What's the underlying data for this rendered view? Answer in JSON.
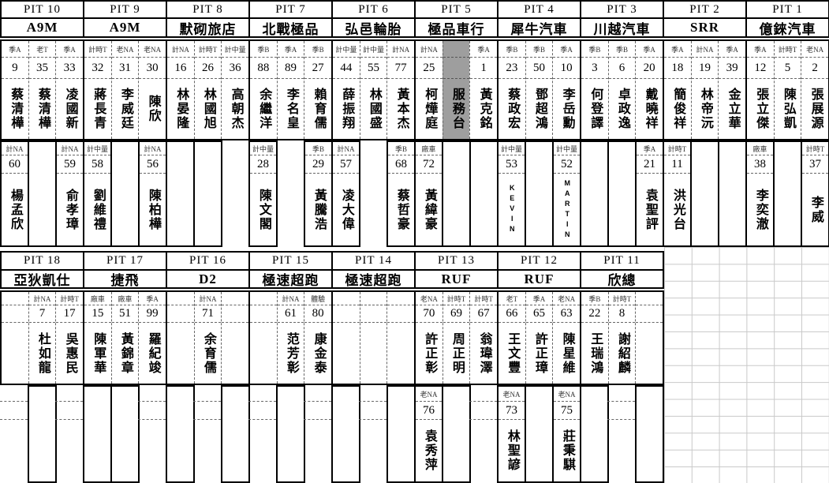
{
  "colors": {
    "service_bg": "#9e9e9e",
    "grid_line": "#c9c9c9",
    "border": "#000000"
  },
  "blocks": [
    {
      "pits": [
        {
          "name": "PIT 10",
          "team": "A9M",
          "cols": [
            {
              "cls": "季A",
              "num": "9",
              "driver": "蔡清樺"
            },
            {
              "cls": "老T",
              "num": "35",
              "driver": "蔡清樺"
            },
            {
              "cls": "季A",
              "num": "33",
              "driver": "凌國新"
            }
          ],
          "bottom": [
            {
              "state": "filled",
              "cls": "計NA",
              "num": "60",
              "driver": "楊孟欣"
            },
            {
              "state": "box"
            },
            {
              "state": "filled",
              "cls": "計NA",
              "num": "59",
              "driver": "俞孝璋"
            }
          ]
        },
        {
          "name": "PIT 9",
          "team": "A9M",
          "cols": [
            {
              "cls": "計時T",
              "num": "32",
              "driver": "蔣長青"
            },
            {
              "cls": "老NA",
              "num": "31",
              "driver": "李威廷"
            },
            {
              "cls": "老NA",
              "num": "30",
              "driver": "陳欣"
            }
          ],
          "bottom": [
            {
              "state": "filled",
              "cls": "計中量",
              "num": "58",
              "driver": "劉維禮"
            },
            {
              "state": "box"
            },
            {
              "state": "filled",
              "cls": "計NA",
              "num": "56",
              "driver": "陳柏樺"
            }
          ]
        },
        {
          "name": "PIT 8",
          "team": "默砌旅店",
          "cols": [
            {
              "cls": "計NA",
              "num": "16",
              "driver": "林晏隆"
            },
            {
              "cls": "計時T",
              "num": "26",
              "driver": "林國旭"
            },
            {
              "cls": "計中量",
              "num": "36",
              "driver": "高朝杰"
            }
          ],
          "bottom": [
            {
              "state": "box"
            },
            {
              "state": "box"
            },
            {
              "state": "none"
            }
          ]
        },
        {
          "name": "PIT 7",
          "team": "北戰極品",
          "cols": [
            {
              "cls": "季B",
              "num": "88",
              "driver": "余繼洋"
            },
            {
              "cls": "季A",
              "num": "89",
              "driver": "李名皇"
            },
            {
              "cls": "季B",
              "num": "27",
              "driver": "賴育儒"
            }
          ],
          "bottom": [
            {
              "state": "filled",
              "cls": "計中量",
              "num": "28",
              "driver": "陳文閣"
            },
            {
              "state": "none"
            },
            {
              "state": "filled",
              "cls": "季B",
              "num": "29",
              "driver": "黃騰浩"
            }
          ]
        },
        {
          "name": "PIT 6",
          "team": "弘邑輪胎",
          "cols": [
            {
              "cls": "計中量",
              "num": "44",
              "driver": "薛振翔"
            },
            {
              "cls": "計中量",
              "num": "55",
              "driver": "林國盛"
            },
            {
              "cls": "計NA",
              "num": "77",
              "driver": "黃本杰"
            }
          ],
          "bottom": [
            {
              "state": "filled",
              "cls": "計NA",
              "num": "57",
              "driver": "凌大偉"
            },
            {
              "state": "none"
            },
            {
              "state": "filled",
              "cls": "季B",
              "num": "68",
              "driver": "蔡哲豪"
            }
          ]
        },
        {
          "name": "PIT 5",
          "team": "極品車行",
          "cols": [
            {
              "cls": "計NA",
              "num": "25",
              "driver": "柯燁庭"
            },
            {
              "cls": "",
              "num": "",
              "driver": "服務台",
              "service": true
            },
            {
              "cls": "季A",
              "num": "1",
              "driver": "黃克銘"
            }
          ],
          "bottom": [
            {
              "state": "filled",
              "cls": "廠車",
              "num": "72",
              "driver": "黃緯豪"
            },
            {
              "state": "box"
            },
            {
              "state": "box"
            }
          ]
        },
        {
          "name": "PIT 4",
          "team": "犀牛汽車",
          "cols": [
            {
              "cls": "季B",
              "num": "23",
              "driver": "蔡政宏"
            },
            {
              "cls": "季B",
              "num": "50",
              "driver": "鄧超鴻"
            },
            {
              "cls": "季A",
              "num": "10",
              "driver": "李岳勳"
            }
          ],
          "bottom": [
            {
              "state": "filled",
              "cls": "計中量",
              "num": "53",
              "driver": "KEVIN"
            },
            {
              "state": "box"
            },
            {
              "state": "filled",
              "cls": "計中量",
              "num": "52",
              "driver": "MARTIN"
            }
          ]
        },
        {
          "name": "PIT 3",
          "team": "川越汽車",
          "cols": [
            {
              "cls": "季B",
              "num": "3",
              "driver": "何登譯"
            },
            {
              "cls": "季B",
              "num": "6",
              "driver": "卓政逸"
            },
            {
              "cls": "季A",
              "num": "20",
              "driver": "戴曉祥"
            }
          ],
          "bottom": [
            {
              "state": "box"
            },
            {
              "state": "box"
            },
            {
              "state": "filled",
              "cls": "季A",
              "num": "21",
              "driver": "袁聖評"
            }
          ]
        },
        {
          "name": "PIT 2",
          "team": "SRR",
          "cols": [
            {
              "cls": "季A",
              "num": "18",
              "driver": "簡俊祥"
            },
            {
              "cls": "計NA",
              "num": "19",
              "driver": "林帝沅"
            },
            {
              "cls": "季A",
              "num": "39",
              "driver": "金立華"
            }
          ],
          "bottom": [
            {
              "state": "filled",
              "cls": "計時T",
              "num": "11",
              "driver": "洪光台"
            },
            {
              "state": "box"
            },
            {
              "state": "box"
            }
          ]
        },
        {
          "name": "PIT 1",
          "team": "億錸汽車",
          "cols": [
            {
              "cls": "季A",
              "num": "12",
              "driver": "張立傑"
            },
            {
              "cls": "計時T",
              "num": "5",
              "driver": "陳弘凱"
            },
            {
              "cls": "老NA",
              "num": "2",
              "driver": "張展源"
            }
          ],
          "bottom": [
            {
              "state": "filled",
              "cls": "廠車",
              "num": "38",
              "driver": "李奕澈"
            },
            {
              "state": "box"
            },
            {
              "state": "filled",
              "cls": "計時T",
              "num": "37",
              "driver": "李威"
            }
          ]
        }
      ]
    },
    {
      "pits": [
        {
          "name": "PIT 18",
          "team": "亞狄凱仕",
          "cols": [
            {
              "cls": "",
              "num": "",
              "driver": ""
            },
            {
              "cls": "計NA",
              "num": "7",
              "driver": "杜如龍"
            },
            {
              "cls": "計時T",
              "num": "17",
              "driver": "吳惠民"
            }
          ],
          "bottom": [
            {
              "state": "dash"
            },
            {
              "state": "box"
            },
            {
              "state": "dash"
            }
          ]
        },
        {
          "name": "PIT 17",
          "team": "捷飛",
          "cols": [
            {
              "cls": "廠車",
              "num": "15",
              "driver": "陳軍華"
            },
            {
              "cls": "廠車",
              "num": "51",
              "driver": "黃錦章"
            },
            {
              "cls": "季A",
              "num": "99",
              "driver": "羅紀竣"
            }
          ],
          "bottom": [
            {
              "state": "box"
            },
            {
              "state": "box"
            },
            {
              "state": "dash"
            }
          ]
        },
        {
          "name": "PIT 16",
          "team": "D2",
          "cols": [
            {
              "cls": "",
              "num": "",
              "driver": ""
            },
            {
              "cls": "計NA",
              "num": "71",
              "driver": "余育儒"
            },
            {
              "cls": "",
              "num": "",
              "driver": ""
            }
          ],
          "bottom": [
            {
              "state": "box"
            },
            {
              "state": "dash"
            },
            {
              "state": "box"
            }
          ]
        },
        {
          "name": "PIT 15",
          "team": "極速超跑",
          "cols": [
            {
              "cls": "",
              "num": "",
              "driver": ""
            },
            {
              "cls": "計NA",
              "num": "61",
              "driver": "范芳彰"
            },
            {
              "cls": "體驗",
              "num": "80",
              "driver": "康金泰"
            }
          ],
          "bottom": [
            {
              "state": "dash"
            },
            {
              "state": "box"
            },
            {
              "state": "dash"
            }
          ]
        },
        {
          "name": "PIT 14",
          "team": "極速超跑",
          "cols": [
            {
              "cls": "",
              "num": "",
              "driver": ""
            },
            {
              "cls": "",
              "num": "",
              "driver": ""
            },
            {
              "cls": "",
              "num": "",
              "driver": ""
            }
          ],
          "bottom": [
            {
              "state": "box"
            },
            {
              "state": "dash"
            },
            {
              "state": "box"
            }
          ]
        },
        {
          "name": "PIT 13",
          "team": "RUF",
          "cols": [
            {
              "cls": "老NA",
              "num": "70",
              "driver": "許正彰"
            },
            {
              "cls": "計時T",
              "num": "69",
              "driver": "周正明"
            },
            {
              "cls": "計時T",
              "num": "67",
              "driver": "翁瑋澤"
            }
          ],
          "bottom": [
            {
              "state": "filled",
              "cls": "老NA",
              "num": "76",
              "driver": "袁秀萍"
            },
            {
              "state": "box"
            },
            {
              "state": "dash"
            }
          ]
        },
        {
          "name": "PIT 12",
          "team": "RUF",
          "cols": [
            {
              "cls": "老T",
              "num": "66",
              "driver": "王文豐"
            },
            {
              "cls": "季A",
              "num": "65",
              "driver": "許正璋"
            },
            {
              "cls": "老NA",
              "num": "63",
              "driver": "陳星維"
            }
          ],
          "bottom": [
            {
              "state": "filled",
              "cls": "老NA",
              "num": "73",
              "driver": "林聖諺"
            },
            {
              "state": "box"
            },
            {
              "state": "filled",
              "cls": "老NA",
              "num": "75",
              "driver": "莊秉騏"
            }
          ]
        },
        {
          "name": "PIT 11",
          "team": "欣總",
          "cols": [
            {
              "cls": "季B",
              "num": "22",
              "driver": "王瑞鴻"
            },
            {
              "cls": "計時T",
              "num": "8",
              "driver": "謝紹麟"
            },
            {
              "cls": "",
              "num": "",
              "driver": ""
            }
          ],
          "bottom": [
            {
              "state": "box"
            },
            {
              "state": "dash"
            },
            {
              "state": "box"
            }
          ]
        }
      ]
    }
  ]
}
